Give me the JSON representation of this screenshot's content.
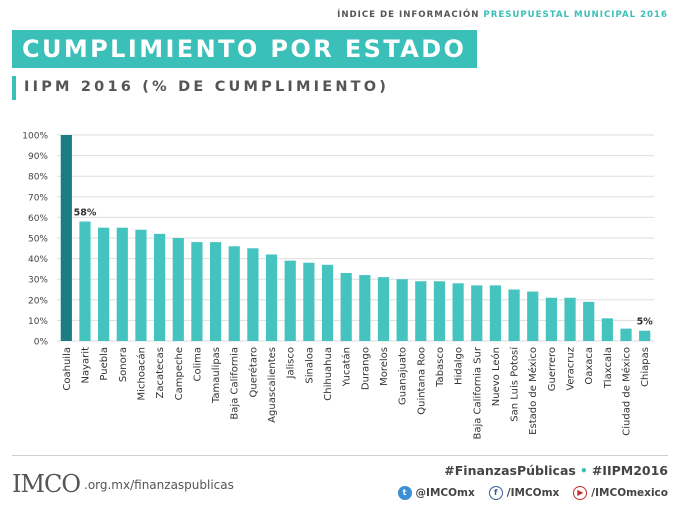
{
  "header": {
    "topline_prefix": "ÍNDICE DE INFORMACIÓN",
    "topline_highlight": "PRESUPUESTAL MUNICIPAL 2016",
    "title": "CUMPLIMIENTO POR ESTADO",
    "subtitle": "IIPM 2016 (% DE CUMPLIMIENTO)"
  },
  "colors": {
    "accent": "#3bbfb9",
    "bar": "#45c3be",
    "highlight_bar": "#1b7c81"
  },
  "chart_data": {
    "type": "bar",
    "categories": [
      "Coahuila",
      "Nayarit",
      "Puebla",
      "Sonora",
      "Michoacán",
      "Zacatecas",
      "Campeche",
      "Colima",
      "Tamaulipas",
      "Baja California",
      "Querétaro",
      "Aguascalientes",
      "Jalisco",
      "Sinaloa",
      "Chihuahua",
      "Yucatán",
      "Durango",
      "Morelos",
      "Guanajuato",
      "Quintana Roo",
      "Tabasco",
      "Hidalgo",
      "Baja California Sur",
      "Nuevo León",
      "San Luis Potosí",
      "Estado de México",
      "Guerrero",
      "Veracruz",
      "Oaxaca",
      "Tlaxcala",
      "Ciudad de México",
      "Chiapas"
    ],
    "values": [
      100,
      58,
      55,
      55,
      54,
      52,
      50,
      48,
      48,
      46,
      45,
      42,
      39,
      38,
      37,
      33,
      32,
      31,
      30,
      29,
      29,
      28,
      27,
      27,
      25,
      24,
      21,
      21,
      19,
      11,
      6,
      5
    ],
    "data_labels": [
      {
        "index": 1,
        "text": "58%"
      },
      {
        "index": 31,
        "text": "5%"
      }
    ],
    "yticks": [
      "0%",
      "10%",
      "20%",
      "30%",
      "40%",
      "50%",
      "60%",
      "70%",
      "80%",
      "90%",
      "100%"
    ],
    "ylim": [
      0,
      100
    ],
    "grid": true,
    "highlight_index": 0
  },
  "footer": {
    "logo": "IMCO",
    "url": ".org.mx/finanzaspublicas",
    "hashtag1": "#FinanzasPúblicas",
    "separator": "•",
    "hashtag2": "#IIPM2016",
    "twitter": "@IMCOmx",
    "facebook": "/IMCOmx",
    "youtube": "/IMCOmexico"
  }
}
